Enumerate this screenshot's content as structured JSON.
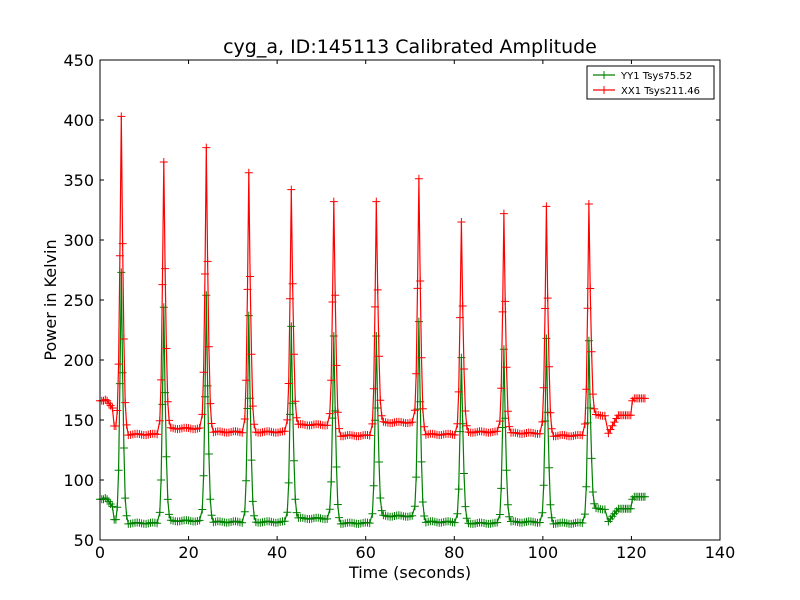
{
  "chart_data": {
    "type": "line",
    "title": "cyg_a, ID:145113 Calibrated Amplitude",
    "xlabel": "Time (seconds)",
    "ylabel": "Power in Kelvin",
    "xlim": [
      0,
      140
    ],
    "ylim": [
      50,
      450
    ],
    "xticks": [
      "0",
      "20",
      "40",
      "60",
      "80",
      "100",
      "120",
      "140"
    ],
    "yticks": [
      "50",
      "100",
      "150",
      "200",
      "250",
      "300",
      "350",
      "400",
      "450"
    ],
    "grid": false,
    "legend_position": "top-right",
    "marker": "plus",
    "peaks": [
      {
        "t": 4.8,
        "xx": 403,
        "yy": 273
      },
      {
        "t": 14.4,
        "xx": 365,
        "yy": 244
      },
      {
        "t": 24.0,
        "xx": 377,
        "yy": 254
      },
      {
        "t": 33.6,
        "xx": 356,
        "yy": 237
      },
      {
        "t": 43.2,
        "xx": 342,
        "yy": 228
      },
      {
        "t": 52.8,
        "xx": 332,
        "yy": 220
      },
      {
        "t": 62.4,
        "xx": 332,
        "yy": 220
      },
      {
        "t": 72.0,
        "xx": 351,
        "yy": 232
      },
      {
        "t": 81.6,
        "xx": 315,
        "yy": 202
      },
      {
        "t": 91.2,
        "xx": 322,
        "yy": 209
      },
      {
        "t": 100.8,
        "xx": 328,
        "yy": 218
      },
      {
        "t": 110.4,
        "xx": 330,
        "yy": 216
      }
    ],
    "series": [
      {
        "name": "YY1 Tsys75.52",
        "color": "#008000",
        "key": "yy",
        "start_level": 84,
        "dip_level": 67,
        "baselines": [
          64,
          66,
          65,
          65,
          68,
          64,
          70,
          65,
          64,
          65,
          64
        ],
        "end_plateau_level": 76,
        "end_level": 86
      },
      {
        "name": "XX1 Tsys211.46",
        "color": "#ff0000",
        "key": "xx",
        "start_level": 166,
        "dip_level": 145,
        "baselines": [
          138,
          143,
          140,
          140,
          146,
          137,
          148,
          138,
          140,
          139,
          137
        ],
        "end_plateau_level": 154,
        "end_level": 168
      }
    ]
  }
}
